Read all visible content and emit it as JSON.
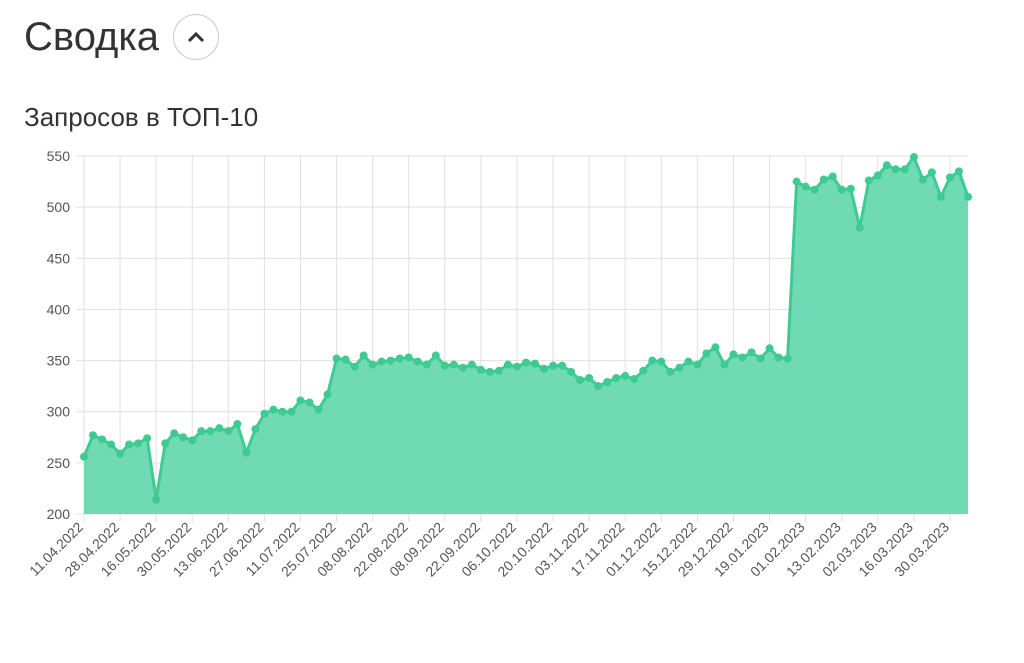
{
  "header": {
    "title": "Сводка"
  },
  "chart_data": {
    "type": "area",
    "title": "Запросов в ТОП-10",
    "categories": [
      "11.04.2022",
      null,
      null,
      null,
      "28.04.2022",
      null,
      null,
      null,
      "16.05.2022",
      null,
      null,
      null,
      "30.05.2022",
      null,
      null,
      null,
      "13.06.2022",
      null,
      null,
      null,
      "27.06.2022",
      null,
      null,
      null,
      "11.07.2022",
      null,
      null,
      null,
      "25.07.2022",
      null,
      null,
      null,
      "08.08.2022",
      null,
      null,
      null,
      "22.08.2022",
      null,
      null,
      null,
      "08.09.2022",
      null,
      null,
      null,
      "22.09.2022",
      null,
      null,
      null,
      "06.10.2022",
      null,
      null,
      null,
      "20.10.2022",
      null,
      null,
      null,
      "03.11.2022",
      null,
      null,
      null,
      "17.11.2022",
      null,
      null,
      null,
      "01.12.2022",
      null,
      null,
      null,
      "15.12.2022",
      null,
      null,
      null,
      "29.12.2022",
      null,
      null,
      null,
      "19.01.2023",
      null,
      null,
      null,
      "01.02.2023",
      null,
      null,
      null,
      "13.02.2023",
      null,
      null,
      null,
      "02.03.2023",
      null,
      null,
      null,
      "16.03.2023",
      null,
      null,
      null,
      "30.03.2023",
      null,
      null
    ],
    "values": [
      256,
      277,
      273,
      268,
      259,
      268,
      269,
      274,
      214,
      269,
      279,
      275,
      272,
      281,
      281,
      284,
      281,
      288,
      260,
      283,
      298,
      302,
      300,
      300,
      311,
      309,
      302,
      317,
      352,
      351,
      344,
      355,
      346,
      349,
      350,
      352,
      353,
      349,
      346,
      355,
      345,
      346,
      343,
      346,
      341,
      339,
      340,
      346,
      344,
      348,
      347,
      342,
      345,
      345,
      339,
      331,
      333,
      325,
      329,
      333,
      335,
      332,
      340,
      350,
      349,
      339,
      343,
      349,
      346,
      357,
      363,
      346,
      356,
      353,
      358,
      352,
      362,
      353,
      352,
      525,
      520,
      517,
      527,
      530,
      517,
      518,
      480,
      526,
      531,
      541,
      537,
      537,
      549,
      527,
      534,
      510,
      529,
      535,
      510
    ],
    "color": "#3ecb92",
    "fill": "#6fdab3",
    "ylim": [
      200,
      550
    ],
    "yticks": [
      200,
      250,
      300,
      350,
      400,
      450,
      500,
      550
    ],
    "grid": true
  }
}
